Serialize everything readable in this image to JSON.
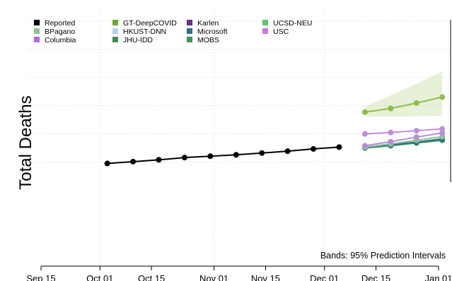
{
  "chart_data": {
    "type": "line",
    "title": "",
    "xlabel": "",
    "ylabel": "Total Deaths",
    "x_tick_labels": [
      "Sep 15",
      "Oct 01",
      "Oct 15",
      "Nov 01",
      "Nov 15",
      "Dec 01",
      "Dec 15",
      "Jan 01"
    ],
    "note": "Bands: 95% Prediction Intervals",
    "grid": true,
    "legend_position": "top-left",
    "legend": [
      {
        "name": "Reported",
        "color": "#000000"
      },
      {
        "name": "BPagano",
        "color": "#8fc08f"
      },
      {
        "name": "Columbia",
        "color": "#b866d9"
      },
      {
        "name": "GT-DeepCOVID",
        "color": "#6aaa2a"
      },
      {
        "name": "HKUST-DNN",
        "color": "#b7d3ee"
      },
      {
        "name": "JHU-IDD",
        "color": "#3e8e55"
      },
      {
        "name": "Karlen",
        "color": "#6a2d91"
      },
      {
        "name": "Microsoft",
        "color": "#2e6e93"
      },
      {
        "name": "MOBS",
        "color": "#3f9450"
      },
      {
        "name": "UCSD-NEU",
        "color": "#5cc46a"
      },
      {
        "name": "USC",
        "color": "#c67ae0"
      }
    ],
    "series": [
      {
        "name": "Reported",
        "color": "#000000",
        "x": [
          "2020-10-03",
          "2020-10-10",
          "2020-10-17",
          "2020-10-24",
          "2020-10-31",
          "2020-11-07",
          "2020-11-14",
          "2020-11-21",
          "2020-11-28",
          "2020-12-05"
        ],
        "y": [
          21.5,
          21.9,
          22.3,
          22.8,
          23.1,
          23.4,
          23.8,
          24.2,
          24.7,
          25.1
        ]
      },
      {
        "name": "GT-DeepCOVID",
        "color": "#8bbf4a",
        "x": [
          "2020-12-12",
          "2020-12-19",
          "2020-12-26",
          "2021-01-02"
        ],
        "y": [
          32.8,
          33.6,
          34.8,
          36.1
        ],
        "band_lower": [
          31.8,
          31.8,
          31.9,
          32.0
        ],
        "band_upper": [
          34.0,
          36.5,
          39.0,
          41.8
        ]
      },
      {
        "name": "USC",
        "color": "#c08ee0",
        "x": [
          "2020-12-12",
          "2020-12-19",
          "2020-12-26",
          "2021-01-02"
        ],
        "y": [
          28.0,
          28.3,
          28.7,
          29.1
        ]
      },
      {
        "name": "Columbia",
        "color": "#b58ed6",
        "x": [
          "2020-12-12",
          "2020-12-19",
          "2020-12-26",
          "2021-01-02"
        ],
        "y": [
          25.4,
          26.3,
          27.3,
          28.2
        ]
      },
      {
        "name": "BPagano",
        "color": "#8fc08f",
        "x": [
          "2020-12-12",
          "2020-12-19",
          "2020-12-26",
          "2021-01-02"
        ],
        "y": [
          25.1,
          25.8,
          26.6,
          27.4
        ]
      },
      {
        "name": "Microsoft",
        "color": "#2e6e93",
        "x": [
          "2020-12-12",
          "2020-12-19",
          "2020-12-26",
          "2021-01-02"
        ],
        "y": [
          25.0,
          25.6,
          26.2,
          26.9
        ]
      },
      {
        "name": "MOBS",
        "color": "#3f9450",
        "x": [
          "2020-12-12",
          "2020-12-19",
          "2020-12-26",
          "2021-01-02"
        ],
        "y": [
          24.9,
          25.4,
          26.0,
          26.6
        ]
      }
    ]
  }
}
